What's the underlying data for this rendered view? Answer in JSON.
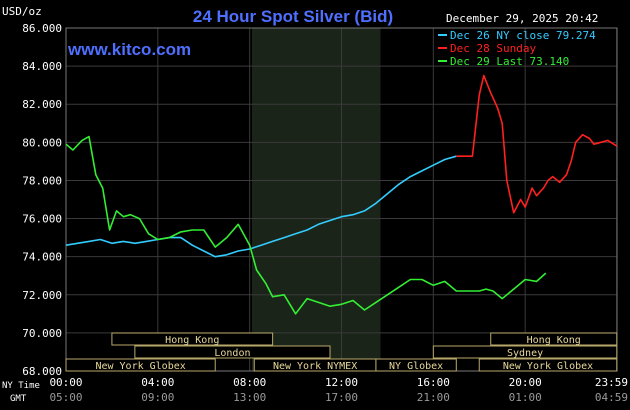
{
  "chart_data": {
    "type": "line",
    "title": "24 Hour Spot Silver (Bid)",
    "site": "www.kitco.com",
    "unit_label": "USD/oz",
    "timestamp": "December 29, 2025 20:42",
    "ylim": [
      68,
      86
    ],
    "y_ticks": [
      "86.000",
      "84.000",
      "82.000",
      "80.000",
      "78.000",
      "76.000",
      "74.000",
      "72.000",
      "70.000",
      "68.000"
    ],
    "x_row_label_ny": "NY Time",
    "x_row_label_gmt": "GMT",
    "x_ticks_ny": [
      "00:00",
      "04:00",
      "08:00",
      "12:00",
      "16:00",
      "20:00",
      "23:59"
    ],
    "x_ticks_gmt": [
      "05:00",
      "09:00",
      "13:00",
      "17:00",
      "21:00",
      "01:00",
      "04:59"
    ],
    "legend": [
      {
        "label": "Dec 26 NY close 79.274",
        "color": "#33ccff"
      },
      {
        "label": "Dec 28 Sunday",
        "color": "#ff2020"
      },
      {
        "label": "Dec 29 Last 73.140",
        "color": "#33ee33"
      }
    ],
    "sessions": [
      {
        "name": "Hong Kong",
        "start": 2.0,
        "end": 9.0,
        "row": 0
      },
      {
        "name": "Hong Kong",
        "start": 18.5,
        "end": 23.99,
        "row": 0
      },
      {
        "name": "London",
        "start": 3.0,
        "end": 11.5,
        "row": 1
      },
      {
        "name": "Sydney",
        "start": 16.0,
        "end": 23.99,
        "row": 1
      },
      {
        "name": "New York Globex",
        "start": 0.0,
        "end": 6.5,
        "row": 2
      },
      {
        "name": "New York NYMEX",
        "start": 8.2,
        "end": 13.5,
        "row": 2
      },
      {
        "name": "NY Globex",
        "start": 13.5,
        "end": 17.0,
        "row": 2
      },
      {
        "name": "New York Globex",
        "start": 18.0,
        "end": 23.99,
        "row": 2
      }
    ],
    "series": [
      {
        "name": "Dec 26 NY close 79.274",
        "color": "#33ccff",
        "x": [
          0,
          0.5,
          1,
          1.5,
          2,
          2.5,
          3,
          3.5,
          4,
          4.5,
          5,
          5.5,
          6,
          6.5,
          7,
          7.5,
          8,
          8.5,
          9,
          9.5,
          10,
          10.5,
          11,
          11.5,
          12,
          12.5,
          13,
          13.5,
          14,
          14.5,
          15,
          15.5,
          16,
          16.5,
          17
        ],
        "y": [
          74.6,
          74.7,
          74.8,
          74.9,
          74.7,
          74.8,
          74.7,
          74.8,
          74.9,
          75.0,
          75.0,
          74.6,
          74.3,
          74.0,
          74.1,
          74.3,
          74.4,
          74.6,
          74.8,
          75.0,
          75.2,
          75.4,
          75.7,
          75.9,
          76.1,
          76.2,
          76.4,
          76.8,
          77.3,
          77.8,
          78.2,
          78.5,
          78.8,
          79.1,
          79.27
        ]
      },
      {
        "name": "Dec 28 Sunday",
        "color": "#ff2020",
        "x": [
          17,
          17.7,
          18.0,
          18.2,
          18.5,
          18.8,
          19.0,
          19.2,
          19.5,
          19.8,
          20.0,
          20.3,
          20.5,
          20.8,
          21.0,
          21.2,
          21.5,
          21.8,
          22.0,
          22.2,
          22.5,
          22.8,
          23.0,
          23.3,
          23.6,
          23.99
        ],
        "y": [
          79.27,
          79.27,
          82.5,
          83.5,
          82.6,
          81.8,
          81.0,
          78.0,
          76.3,
          77.0,
          76.6,
          77.6,
          77.2,
          77.6,
          78.0,
          78.2,
          77.9,
          78.3,
          79.0,
          80.0,
          80.4,
          80.2,
          79.9,
          80.0,
          80.1,
          79.8
        ]
      },
      {
        "name": "Dec 29 Last 73.140",
        "color": "#33ee33",
        "x": [
          0,
          0.3,
          0.7,
          1.0,
          1.3,
          1.6,
          1.9,
          2.2,
          2.5,
          2.8,
          3.2,
          3.6,
          4.0,
          4.5,
          5.0,
          5.5,
          6.0,
          6.5,
          7.0,
          7.5,
          8.0,
          8.3,
          8.7,
          9.0,
          9.5,
          10.0,
          10.5,
          11.0,
          11.5,
          12.0,
          12.5,
          13.0,
          13.5,
          14.0,
          14.5,
          15.0,
          15.5,
          16.0,
          16.5,
          17.0,
          17.5,
          18.0,
          18.3,
          18.6,
          19.0,
          19.5,
          20.0,
          20.5,
          20.9
        ],
        "y": [
          79.9,
          79.6,
          80.1,
          80.3,
          78.3,
          77.6,
          75.4,
          76.4,
          76.1,
          76.2,
          76.0,
          75.2,
          74.9,
          75.0,
          75.3,
          75.4,
          75.4,
          74.5,
          75.0,
          75.7,
          74.6,
          73.3,
          72.6,
          71.9,
          72.0,
          71.0,
          71.8,
          71.6,
          71.4,
          71.5,
          71.7,
          71.2,
          71.6,
          72.0,
          72.4,
          72.8,
          72.8,
          72.5,
          72.7,
          72.2,
          72.2,
          72.2,
          72.3,
          72.2,
          71.8,
          72.3,
          72.8,
          72.7,
          73.14
        ]
      }
    ]
  },
  "shaded_region": {
    "start": 8.1,
    "end": 13.7
  }
}
